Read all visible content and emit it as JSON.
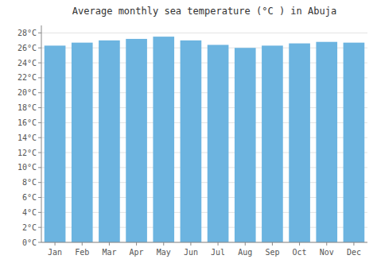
{
  "chart_data": {
    "type": "bar",
    "title": "Average monthly sea temperature (°C ) in Abuja",
    "categories": [
      "Jan",
      "Feb",
      "Mar",
      "Apr",
      "May",
      "Jun",
      "Jul",
      "Aug",
      "Sep",
      "Oct",
      "Nov",
      "Dec"
    ],
    "values": [
      26.3,
      26.7,
      27.0,
      27.2,
      27.5,
      27.0,
      26.4,
      26.0,
      26.3,
      26.6,
      26.8,
      26.7
    ],
    "color": "#6cb4e0",
    "ylim": [
      0,
      29
    ],
    "yticks": [
      {
        "value": 0,
        "label": "0°C"
      },
      {
        "value": 2,
        "label": "2°C"
      },
      {
        "value": 4,
        "label": "4°C"
      },
      {
        "value": 6,
        "label": "6°C"
      },
      {
        "value": 8,
        "label": "8°C"
      },
      {
        "value": 10,
        "label": "10°C"
      },
      {
        "value": 12,
        "label": "12°C"
      },
      {
        "value": 14,
        "label": "14°C"
      },
      {
        "value": 16,
        "label": "16°C"
      },
      {
        "value": 18,
        "label": "18°C"
      },
      {
        "value": 20,
        "label": "20°C"
      },
      {
        "value": 22,
        "label": "22°C"
      },
      {
        "value": 24,
        "label": "24°C"
      },
      {
        "value": 26,
        "label": "26°C"
      },
      {
        "value": 28,
        "label": "28°C"
      }
    ],
    "grid": true
  }
}
